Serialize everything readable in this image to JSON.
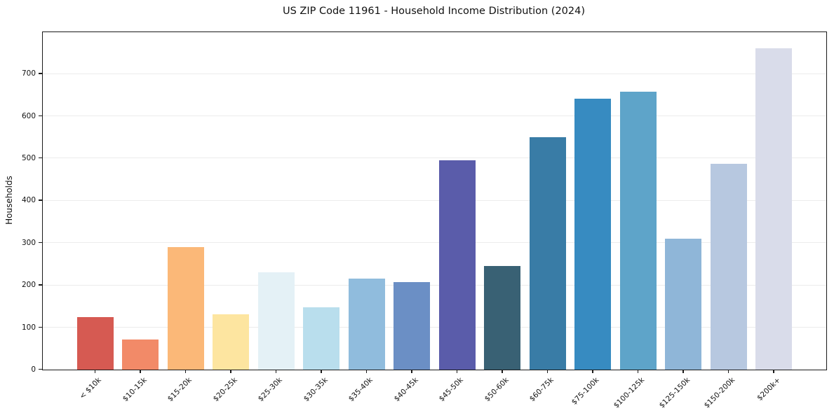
{
  "figure": {
    "background": "#ffffff",
    "frame_color": "#1a1a1a",
    "grid_color": "#ececec"
  },
  "chart_data": {
    "type": "bar",
    "title": "US ZIP Code 11961 - Household Income Distribution (2024)",
    "xlabel": "",
    "ylabel": "Households",
    "categories": [
      "< $10k",
      "$10-15k",
      "$15-20k",
      "$20-25k",
      "$25-30k",
      "$30-35k",
      "$35-40k",
      "$40-45k",
      "$45-50k",
      "$50-60k",
      "$60-75k",
      "$75-100k",
      "$100-125k",
      "$125-150k",
      "$150-200k",
      "$200k+"
    ],
    "values": [
      125,
      72,
      290,
      130,
      230,
      148,
      215,
      207,
      495,
      245,
      550,
      640,
      658,
      310,
      487,
      760
    ],
    "bar_colors": [
      "#d65a52",
      "#f28a68",
      "#fbb878",
      "#fde5a0",
      "#e4f1f6",
      "#b9deed",
      "#90bcdd",
      "#6b8fc5",
      "#5a5caa",
      "#396174",
      "#397ca6",
      "#378bc1",
      "#5ea4c9",
      "#8fb6d8",
      "#b7c8e0",
      "#d9dcea"
    ],
    "yticks": [
      0,
      100,
      200,
      300,
      400,
      500,
      600,
      700
    ],
    "ylim": [
      0,
      798
    ],
    "grid": true,
    "legend_position": "none",
    "xtick_label_rotation_deg": 45,
    "bar_relative_width": 0.8
  }
}
